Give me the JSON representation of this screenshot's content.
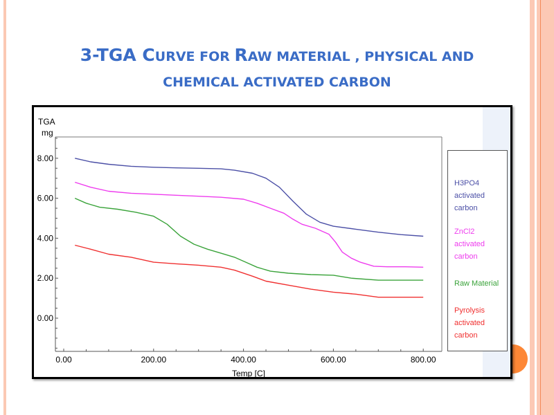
{
  "slide": {
    "title_line1_parts": [
      {
        "text": "3-TGA C",
        "size": "big"
      },
      {
        "text": "URVE FOR ",
        "size": "small"
      },
      {
        "text": "R",
        "size": "big"
      },
      {
        "text": "AW MATERIAL , PHYSICAL AND",
        "size": "small"
      }
    ],
    "title_line2": "CHEMICAL ACTIVATED CARBON",
    "title_color": "#3a6cc6"
  },
  "chart_data": {
    "type": "line",
    "title": "3-TGA Curve for Raw material , physical and chemical activated carbon",
    "ylabel_line1": "TGA",
    "ylabel_line2": "mg",
    "xlabel": "Temp  [C]",
    "xlim": [
      -25,
      830
    ],
    "ylim": [
      -1.6,
      9.2
    ],
    "x_ticks": [
      0,
      200,
      400,
      600,
      800
    ],
    "x_tick_labels": [
      "0.00",
      "200.00",
      "400.00",
      "600.00",
      "800.00"
    ],
    "y_ticks": [
      0,
      2,
      4,
      6,
      8
    ],
    "y_tick_labels": [
      "0.00",
      "2.00",
      "4.00",
      "6.00",
      "8.00"
    ],
    "grid": false,
    "legend_position": "right",
    "series": [
      {
        "name": "H3PO4 activated carbon",
        "legend_lines": [
          "H3PO4",
          "activated",
          "carbon"
        ],
        "color": "#4b4fa6",
        "x": [
          25,
          60,
          100,
          150,
          200,
          250,
          300,
          350,
          380,
          420,
          450,
          480,
          510,
          540,
          570,
          600,
          650,
          700,
          750,
          800
        ],
        "y": [
          8.0,
          7.82,
          7.7,
          7.6,
          7.55,
          7.52,
          7.5,
          7.47,
          7.4,
          7.25,
          7.0,
          6.55,
          5.85,
          5.2,
          4.8,
          4.6,
          4.45,
          4.3,
          4.18,
          4.1
        ]
      },
      {
        "name": "ZnCl2 activated carbon",
        "legend_lines": [
          "ZnCl2",
          "activated",
          "carbon"
        ],
        "color": "#ee3cee",
        "x": [
          25,
          60,
          100,
          150,
          200,
          250,
          300,
          350,
          400,
          430,
          460,
          490,
          510,
          530,
          560,
          590,
          605,
          620,
          640,
          660,
          690,
          720,
          760,
          800
        ],
        "y": [
          6.8,
          6.55,
          6.35,
          6.25,
          6.2,
          6.15,
          6.1,
          6.05,
          5.95,
          5.75,
          5.5,
          5.25,
          4.95,
          4.7,
          4.5,
          4.2,
          3.8,
          3.3,
          3.0,
          2.8,
          2.6,
          2.57,
          2.57,
          2.55
        ]
      },
      {
        "name": "Raw Material",
        "legend_lines": [
          "Raw Material"
        ],
        "color": "#3aa33a",
        "x": [
          25,
          50,
          80,
          120,
          160,
          200,
          230,
          260,
          290,
          320,
          350,
          380,
          400,
          430,
          460,
          500,
          550,
          600,
          640,
          700,
          750,
          800
        ],
        "y": [
          6.0,
          5.75,
          5.55,
          5.45,
          5.3,
          5.1,
          4.7,
          4.1,
          3.7,
          3.45,
          3.25,
          3.05,
          2.85,
          2.55,
          2.35,
          2.25,
          2.18,
          2.15,
          2.0,
          1.9,
          1.9,
          1.9
        ]
      },
      {
        "name": "Pyrolysis activated carbon",
        "legend_lines": [
          "Pyrolysis",
          "activated",
          "carbon"
        ],
        "color": "#f03030",
        "x": [
          25,
          60,
          100,
          150,
          200,
          250,
          300,
          350,
          380,
          420,
          450,
          500,
          550,
          600,
          650,
          700,
          750,
          800
        ],
        "y": [
          3.65,
          3.45,
          3.2,
          3.05,
          2.8,
          2.72,
          2.65,
          2.55,
          2.4,
          2.1,
          1.85,
          1.65,
          1.45,
          1.3,
          1.2,
          1.05,
          1.05,
          1.05
        ]
      }
    ]
  }
}
